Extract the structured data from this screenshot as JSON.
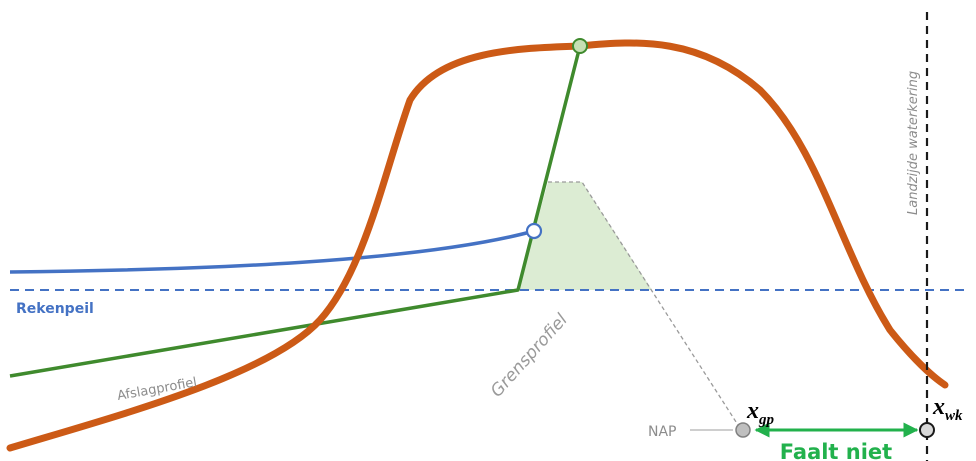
{
  "labels": {
    "rekenpeil": "Rekenpeil",
    "afslagprofiel": "Afslagprofiel",
    "grensprofiel": "Grensprofiel",
    "landzijde": "Landzijde waterkering",
    "nap": "NAP",
    "x_gp_main": "x",
    "x_gp_sub": "gp",
    "x_wk_main": "x",
    "x_wk_sub": "wk",
    "faalt_niet": "Faalt niet"
  },
  "colors": {
    "dune_profile": "#cc5a16",
    "afslagprofiel": "#3f8a2d",
    "grensprofiel_fill": "#dcecd3",
    "grensprofiel_outline": "#9a9a9a",
    "rekenpeil": "#4472c4",
    "blue_curve": "#4472c4",
    "landzijde_line": "#1a1a1a",
    "arrow": "#22b14c",
    "text_grey": "#8c8c8c"
  }
}
